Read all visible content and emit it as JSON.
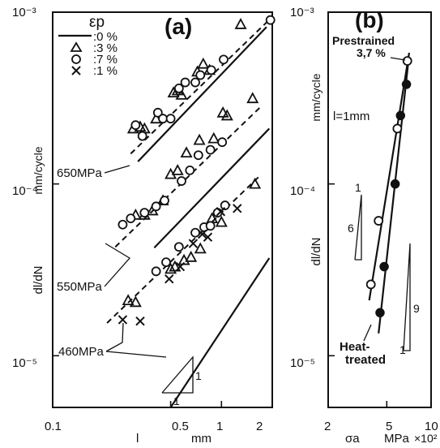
{
  "chart_data": [
    {
      "id": "a",
      "type": "scatter",
      "panel_label": "(a)",
      "xlabel": "l",
      "xunit": "mm",
      "ylabel": "dl/dN",
      "yunit": "mm/cycle",
      "xscale": "log",
      "yscale": "log",
      "xlim": [
        0.1,
        2
      ],
      "ylim": [
        5e-06,
        0.001
      ],
      "x_ticks": [
        {
          "value": 0.1,
          "label": "0.1"
        },
        {
          "value": 0.5,
          "label": "0.5"
        },
        {
          "value": 1,
          "label": "1"
        },
        {
          "value": 2,
          "label": "2"
        }
      ],
      "y_ticks": [
        {
          "value": 0.001,
          "label": "10⁻³"
        },
        {
          "value": 0.0001,
          "label": "10⁻⁴"
        },
        {
          "value": 1e-05,
          "label": "10⁻⁵"
        }
      ],
      "legend": {
        "placement": "top-left",
        "title": "εp",
        "entries": [
          {
            "marker": "line",
            "label": ":0 %"
          },
          {
            "marker": "triangle",
            "label": ":3 %"
          },
          {
            "marker": "circle",
            "label": ":7 %"
          },
          {
            "marker": "cross",
            "label": ":1 %"
          }
        ]
      },
      "stress_labels": [
        {
          "text": "650MPa",
          "x": 0.125,
          "y": 0.000135
        },
        {
          "text": "550MPa",
          "x": 0.125,
          "y": 4.2e-05
        },
        {
          "text": "460MPa",
          "x": 0.135,
          "y": 9.6e-06
        }
      ],
      "slope_triangle": {
        "rise_label": "1",
        "run_label": "1",
        "x_left": 0.55,
        "x_right": 0.85,
        "y_bottom": 5.9e-06
      },
      "solid_lines": [
        {
          "name": "650MPa",
          "x": [
            0.32,
            1.85
          ],
          "y": [
            0.000135,
            0.00082
          ]
        },
        {
          "name": "550MPa",
          "x": [
            0.4,
            1.92
          ],
          "y": [
            4.25e-05,
            0.00021
          ]
        },
        {
          "name": "460MPa",
          "x": [
            0.5,
            1.92
          ],
          "y": [
            5e-06,
            3.7e-05
          ]
        }
      ],
      "dashed_lines": [
        {
          "name": "650MPa",
          "x": [
            0.29,
            1.98
          ],
          "y": [
            0.00015,
            0.00093
          ]
        },
        {
          "name": "550MPa",
          "x": [
            0.235,
            1.7
          ],
          "y": [
            4.3e-05,
            0.00028
          ]
        },
        {
          "name": "460MPa",
          "x": [
            0.21,
            1.68
          ],
          "y": [
            1.55e-05,
            0.000111
          ]
        }
      ],
      "series": [
        {
          "marker": "triangle",
          "points": [
            [
              0.3,
              0.00021
            ],
            [
              0.33,
              0.000215
            ],
            [
              0.35,
              0.00021
            ],
            [
              0.41,
              0.00024
            ],
            [
              0.52,
              0.00034
            ],
            [
              0.55,
              0.00035
            ],
            [
              0.58,
              0.00033
            ],
            [
              0.72,
              0.00045
            ],
            [
              0.78,
              0.0005
            ],
            [
              0.85,
              0.00046
            ],
            [
              1.3,
              0.00085
            ],
            [
              0.31,
              6.6e-05
            ],
            [
              0.35,
              6.6e-05
            ],
            [
              0.39,
              7e-05
            ],
            [
              0.45,
              8e-05
            ],
            [
              0.5,
              0.000114
            ],
            [
              0.55,
              0.00012
            ],
            [
              0.62,
              0.000152
            ],
            [
              0.74,
              0.00018
            ],
            [
              0.9,
              0.000184
            ],
            [
              1.02,
              0.00026
            ],
            [
              1.08,
              0.00025
            ],
            [
              1.53,
              0.000315
            ],
            [
              0.28,
              2.1e-05
            ],
            [
              0.31,
              2.05e-05
            ],
            [
              0.5,
              3.2e-05
            ],
            [
              0.53,
              3.3e-05
            ],
            [
              0.6,
              3.6e-05
            ],
            [
              0.66,
              3.75e-05
            ],
            [
              0.75,
              4.2e-05
            ],
            [
              0.88,
              6.3e-05
            ],
            [
              1.0,
              6e-05
            ],
            [
              1.58,
              0.0001
            ]
          ]
        },
        {
          "marker": "circle",
          "points": [
            [
              0.31,
              0.00022
            ],
            [
              0.34,
              0.00019
            ],
            [
              0.42,
              0.00026
            ],
            [
              0.45,
              0.00024
            ],
            [
              0.5,
              0.00024
            ],
            [
              0.56,
              0.00036
            ],
            [
              0.61,
              0.00039
            ],
            [
              0.7,
              0.00039
            ],
            [
              0.75,
              0.00043
            ],
            [
              0.87,
              0.00046
            ],
            [
              1.03,
              0.00053
            ],
            [
              1.95,
              0.0009
            ],
            [
              0.26,
              5.8e-05
            ],
            [
              0.29,
              6.3e-05
            ],
            [
              0.35,
              6.8e-05
            ],
            [
              0.41,
              7.4e-05
            ],
            [
              0.46,
              8e-05
            ],
            [
              0.58,
              0.000104
            ],
            [
              0.65,
              0.00012
            ],
            [
              0.73,
              0.000147
            ],
            [
              0.86,
              0.000158
            ],
            [
              1.01,
              0.000175
            ],
            [
              0.41,
              3.1e-05
            ],
            [
              0.47,
              3.5e-05
            ],
            [
              0.56,
              4.3e-05
            ],
            [
              0.7,
              5.2e-05
            ],
            [
              0.79,
              5.6e-05
            ],
            [
              0.86,
              5.7e-05
            ],
            [
              0.95,
              6.8e-05
            ],
            [
              1.05,
              7.5e-05
            ]
          ]
        },
        {
          "marker": "cross",
          "points": [
            [
              0.49,
              2.8e-05
            ],
            [
              0.57,
              3.3e-05
            ],
            [
              0.68,
              4.5e-05
            ],
            [
              0.77,
              5.1e-05
            ],
            [
              0.83,
              4.9e-05
            ],
            [
              0.99,
              6.9e-05
            ],
            [
              1.24,
              7.2e-05
            ],
            [
              0.26,
              1.62e-05
            ],
            [
              0.33,
              1.59e-05
            ]
          ]
        }
      ]
    },
    {
      "id": "b",
      "type": "line",
      "panel_label": "(b)",
      "xlabel": "σa",
      "xunit": "MPa",
      "x_multiplier": "×10²",
      "ylabel": "dl/dN",
      "yunit": "mm/cycle",
      "xscale": "log",
      "yscale": "log",
      "xlim": [
        2,
        10
      ],
      "ylim": [
        5e-06,
        0.001
      ],
      "condition": "l=1mm",
      "x_ticks": [
        {
          "value": 2,
          "label": "2"
        },
        {
          "value": 5,
          "label": "5"
        },
        {
          "value": 10,
          "label": "10"
        }
      ],
      "y_ticks": [
        {
          "value": 0.001,
          "label": "10⁻³"
        },
        {
          "value": 0.0001,
          "label": "10⁻⁴"
        },
        {
          "value": 1e-05,
          "label": "10⁻⁵"
        }
      ],
      "annotations": [
        {
          "text": "Prestrained",
          "target": "prestrained"
        },
        {
          "text": "3,7 %",
          "target": "prestrained"
        },
        {
          "text": "Heat-",
          "target": "heat-treated"
        },
        {
          "text": "treated",
          "target": "heat-treated"
        }
      ],
      "slope_triangles": [
        {
          "series": "prestrained",
          "rise_label": "6",
          "run_label": "1"
        },
        {
          "series": "heat-treated",
          "rise_label": "9",
          "run_label": "1"
        }
      ],
      "series": [
        {
          "name": "prestrained",
          "marker": "open-circle",
          "points": [
            [
              3.9,
              2.6e-05
            ],
            [
              4.4,
              6.1e-05
            ],
            [
              5.9,
              0.00021
            ],
            [
              6.9,
              0.00052
            ]
          ],
          "line": {
            "x": [
              3.8,
              7.1
            ],
            "y": [
              2.1e-05,
              0.00058
            ]
          }
        },
        {
          "name": "heat-treated",
          "marker": "filled-circle",
          "points": [
            [
              4.5,
              1.78e-05
            ],
            [
              4.8,
              3.3e-05
            ],
            [
              5.7,
              0.0001
            ],
            [
              6.2,
              0.00025
            ],
            [
              6.8,
              0.00038
            ]
          ],
          "line": {
            "x": [
              4.4,
              7.0
            ],
            "y": [
              1.35e-05,
              0.00051
            ]
          }
        }
      ]
    }
  ]
}
